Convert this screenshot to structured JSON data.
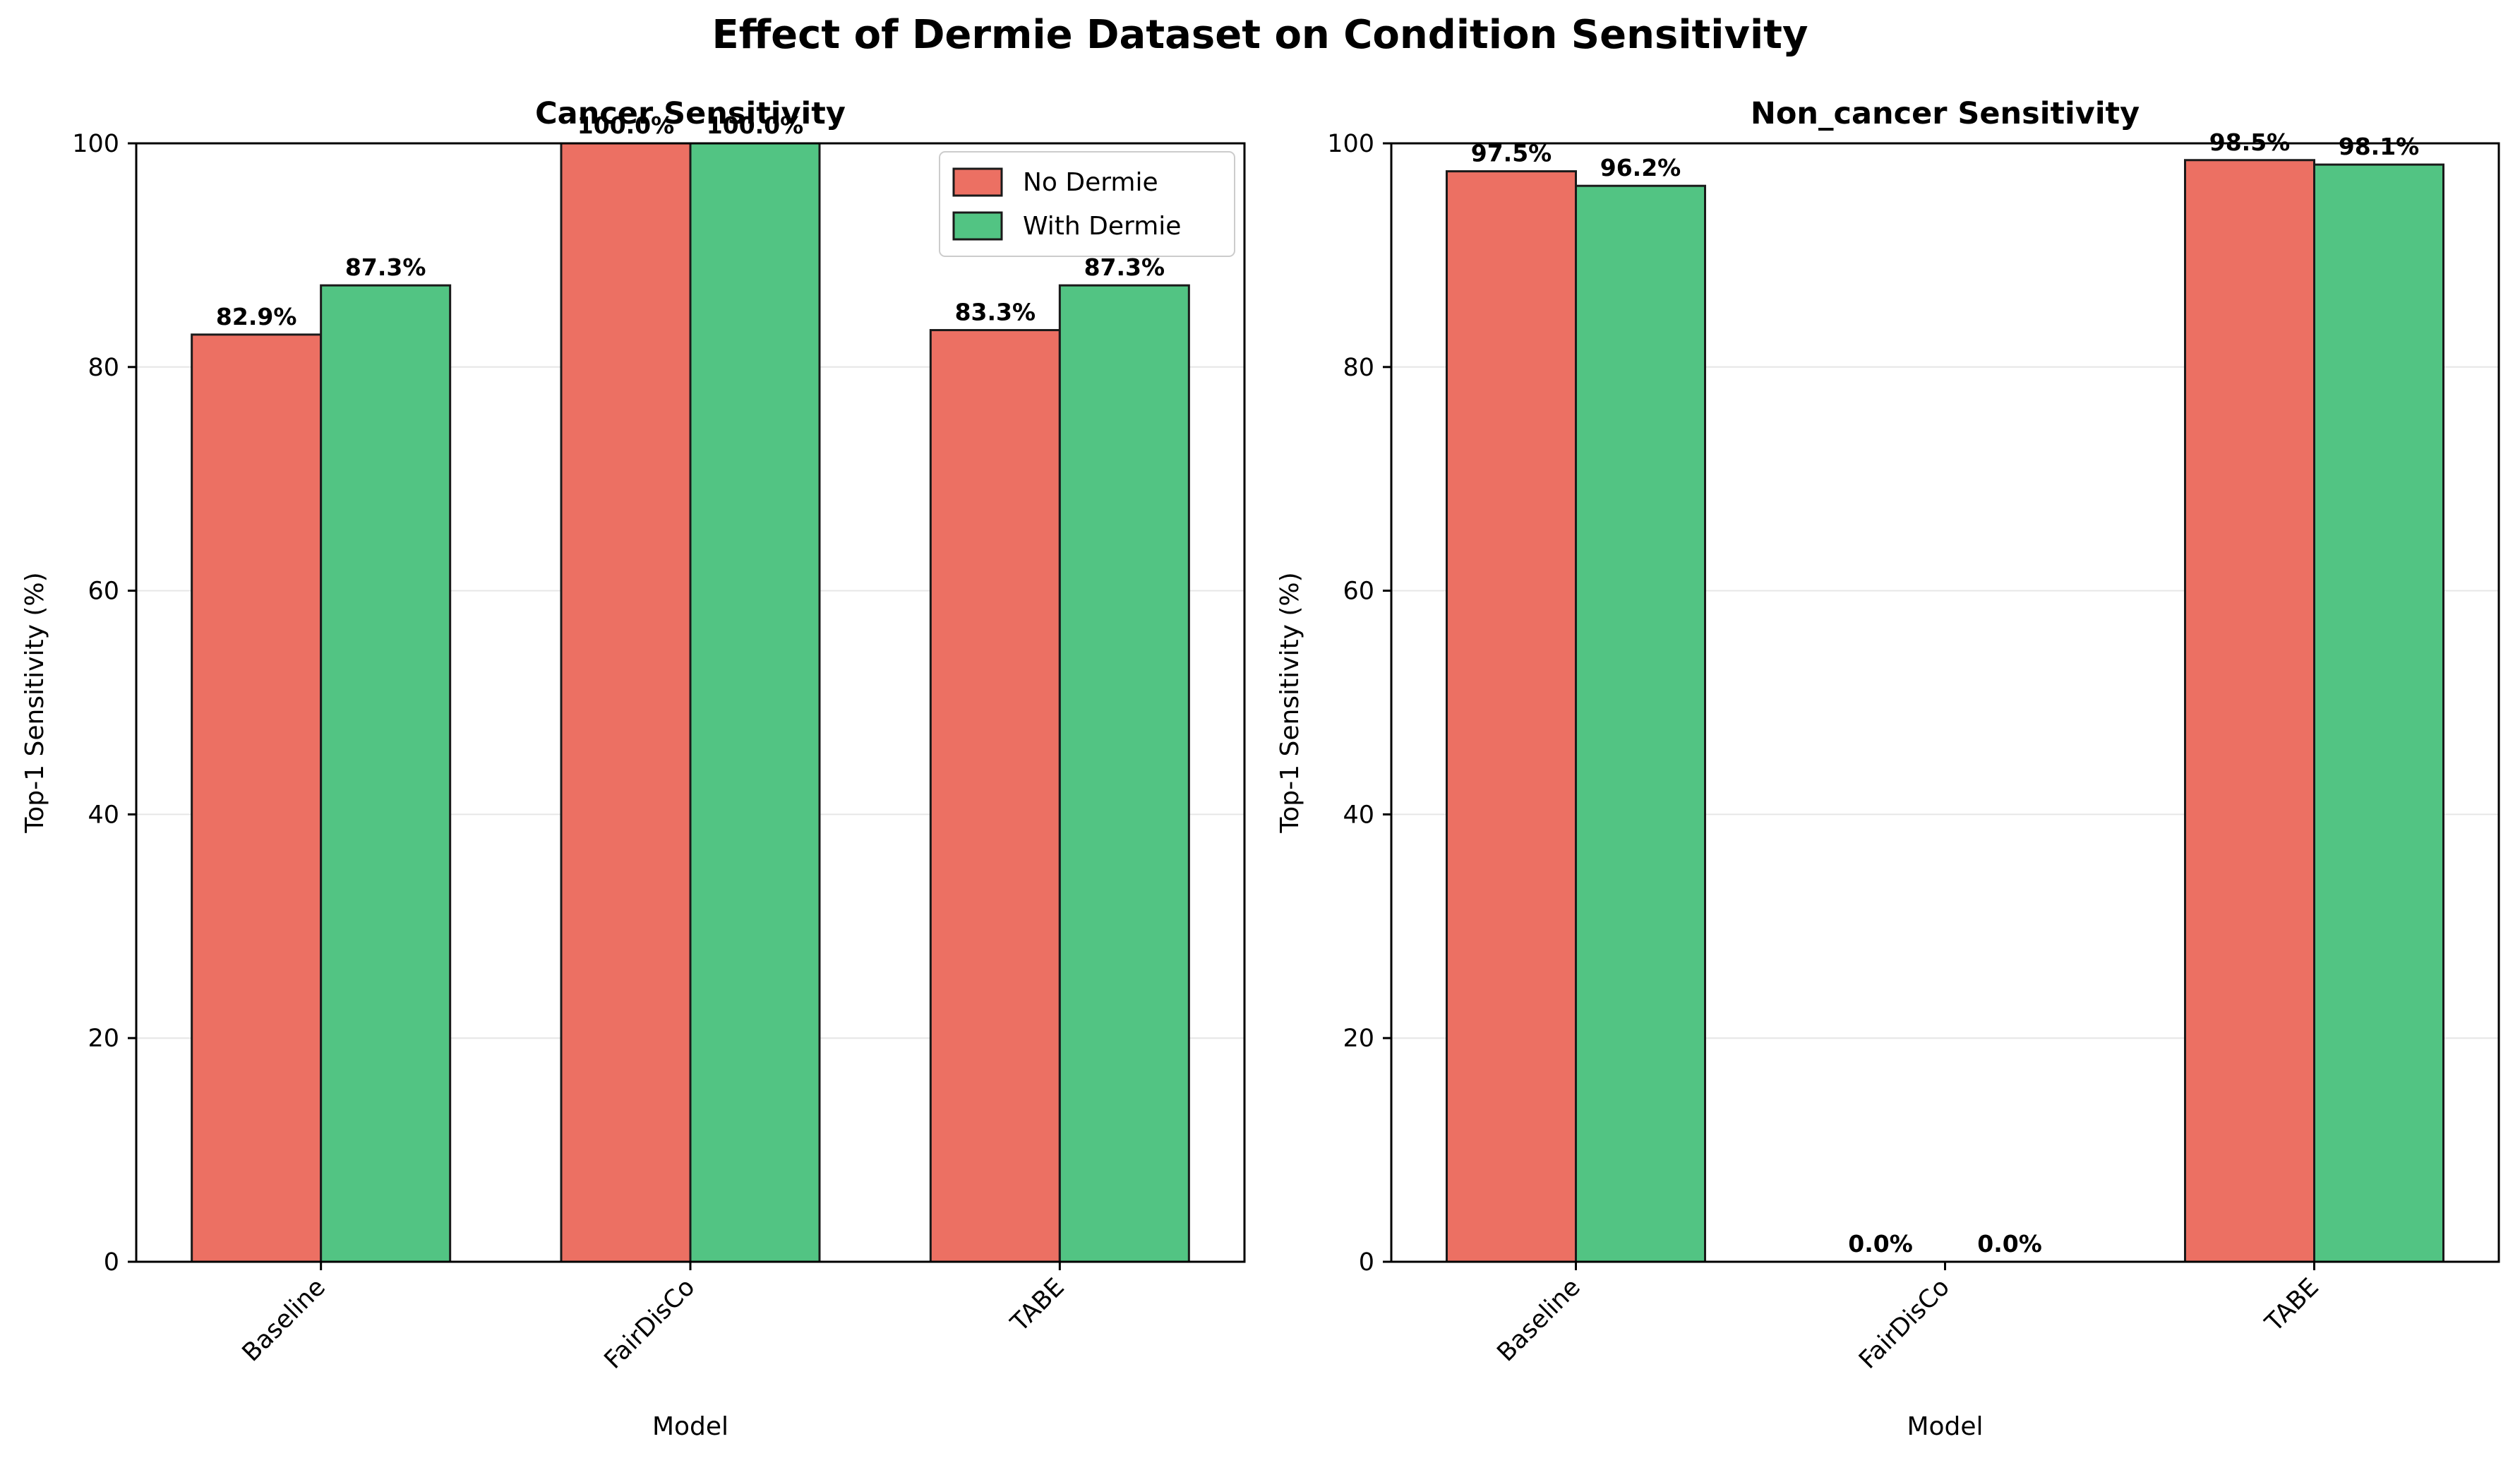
{
  "figure": {
    "title": "Effect of Dermie Dataset on Condition Sensitivity"
  },
  "colors": {
    "no_dermie": "#ec7063",
    "with_dermie": "#52c483",
    "edge": "#1a1a1a",
    "grid": "#e6e6e6"
  },
  "legend": {
    "placement": "upper-right",
    "entries": [
      "No Dermie",
      "With Dermie"
    ]
  },
  "chart_data": [
    {
      "type": "bar",
      "title": "Cancer Sensitivity",
      "xlabel": "Model",
      "ylabel": "Top-1 Sensitivity (%)",
      "categories": [
        "Baseline",
        "FairDisCo",
        "TABE"
      ],
      "ylim": [
        0,
        100
      ],
      "yticks": [
        0,
        20,
        40,
        60,
        80,
        100
      ],
      "grid": "horizontal",
      "series": [
        {
          "name": "No Dermie",
          "values": [
            82.9,
            100.0,
            83.3
          ],
          "labels": [
            "82.9%",
            "100.0%",
            "83.3%"
          ]
        },
        {
          "name": "With Dermie",
          "values": [
            87.3,
            100.0,
            87.3
          ],
          "labels": [
            "87.3%",
            "100.0%",
            "87.3%"
          ]
        }
      ],
      "legend": true
    },
    {
      "type": "bar",
      "title": "Non_cancer Sensitivity",
      "xlabel": "Model",
      "ylabel": "Top-1 Sensitivity (%)",
      "categories": [
        "Baseline",
        "FairDisCo",
        "TABE"
      ],
      "ylim": [
        0,
        100
      ],
      "yticks": [
        0,
        20,
        40,
        60,
        80,
        100
      ],
      "grid": "horizontal",
      "series": [
        {
          "name": "No Dermie",
          "values": [
            97.5,
            0.0,
            98.5
          ],
          "labels": [
            "97.5%",
            "0.0%",
            "98.5%"
          ]
        },
        {
          "name": "With Dermie",
          "values": [
            96.2,
            0.0,
            98.1
          ],
          "labels": [
            "96.2%",
            "0.0%",
            "98.1%"
          ]
        }
      ],
      "legend": false
    }
  ]
}
